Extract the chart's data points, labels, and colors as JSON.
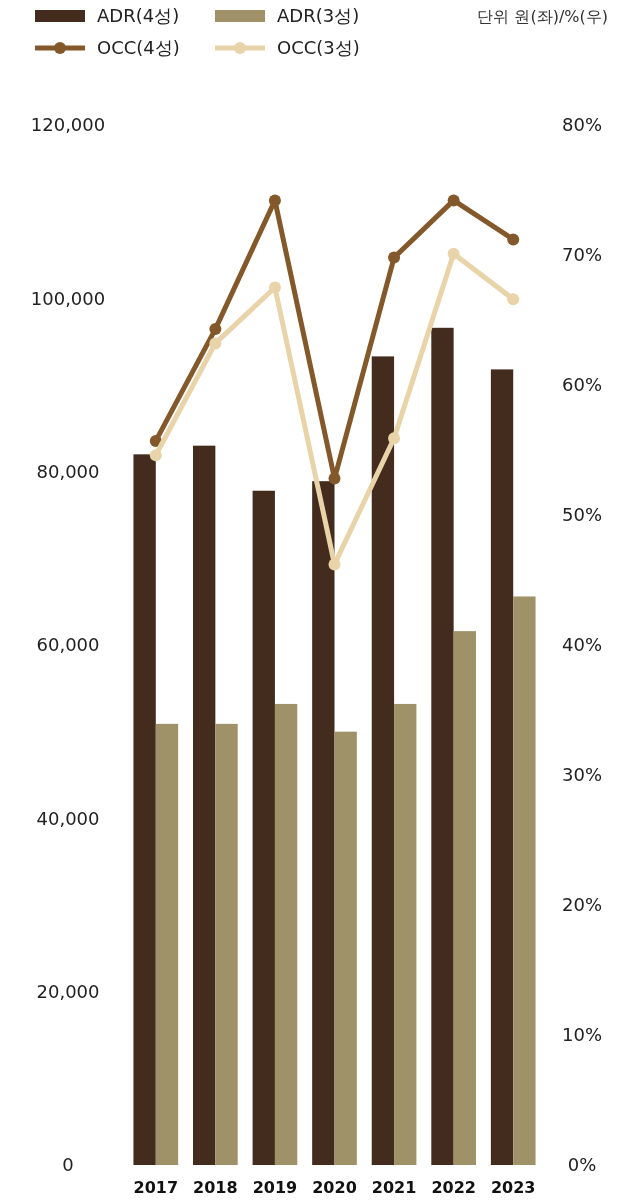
{
  "chart_data": {
    "type": "bar",
    "categories": [
      "2017",
      "2018",
      "2019",
      "2020",
      "2021",
      "2022",
      "2023"
    ],
    "series": [
      {
        "name": "ADR(4성)",
        "color": "#432c1e",
        "values": [
          82000,
          83000,
          77800,
          78900,
          93300,
          96600,
          91800
        ]
      },
      {
        "name": "ADR(3성)",
        "color": "#a09268",
        "values": [
          50900,
          50900,
          53200,
          50000,
          53200,
          61600,
          65600
        ]
      },
      {
        "name": "OCC(4성)",
        "type": "line",
        "axis": "y2",
        "color": "#83582a",
        "values": [
          55.7,
          64.3,
          74.2,
          52.8,
          69.8,
          74.2,
          71.2
        ]
      },
      {
        "name": "OCC(3성)",
        "type": "line",
        "axis": "y2",
        "color": "#e9d3a9",
        "values": [
          54.6,
          63.2,
          67.5,
          46.2,
          55.9,
          70.1,
          66.6
        ]
      }
    ],
    "ylim": [
      0,
      120000
    ],
    "yticks": [
      {
        "value": 0,
        "label": "0"
      },
      {
        "value": 20000,
        "label": "20,000"
      },
      {
        "value": 40000,
        "label": "40,000"
      },
      {
        "value": 60000,
        "label": "60,000"
      },
      {
        "value": 80000,
        "label": "80,000"
      },
      {
        "value": 100000,
        "label": "100,000"
      },
      {
        "value": 120000,
        "label": "120,000"
      }
    ],
    "y2lim": [
      0,
      80
    ],
    "y2ticks": [
      {
        "value": 0,
        "label": "0%"
      },
      {
        "value": 10,
        "label": "10%"
      },
      {
        "value": 20,
        "label": "20%"
      },
      {
        "value": 30,
        "label": "30%"
      },
      {
        "value": 40,
        "label": "40%"
      },
      {
        "value": 50,
        "label": "50%"
      },
      {
        "value": 60,
        "label": "60%"
      },
      {
        "value": 70,
        "label": "70%"
      },
      {
        "value": 80,
        "label": "80%"
      }
    ],
    "annotations": [
      "단위 원(좌)/%(우)"
    ],
    "legend": "top left",
    "marker": "circle",
    "grid": false
  }
}
